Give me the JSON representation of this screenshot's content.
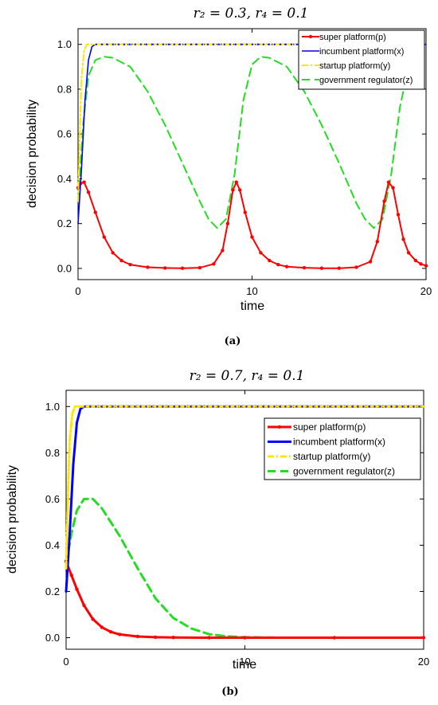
{
  "chart_data": [
    {
      "type": "line",
      "title": "r₂ = 0.3, r₄ = 0.1",
      "xlabel": "time",
      "ylabel": "decision probability",
      "xlim": [
        0,
        20
      ],
      "ylim": [
        -0.05,
        1.07
      ],
      "xticks": [
        "0",
        "10",
        "20"
      ],
      "yticks": [
        "0.0",
        "0.2",
        "0.4",
        "0.6",
        "0.8",
        "1.0"
      ],
      "caption": "(a)",
      "legend_position": "top-right",
      "series": [
        {
          "name": "super platform(p)",
          "color": "#ff0000",
          "style": "solid-dots",
          "x": [
            0,
            0.15,
            0.35,
            0.6,
            1.0,
            1.5,
            2.0,
            2.5,
            3.0,
            4.0,
            5.0,
            6.0,
            7.0,
            7.8,
            8.3,
            8.6,
            8.9,
            9.1,
            9.3,
            9.6,
            10.0,
            10.5,
            11.0,
            11.5,
            12.0,
            13.0,
            14.0,
            15.0,
            16.0,
            16.8,
            17.2,
            17.6,
            17.85,
            18.1,
            18.4,
            18.7,
            19.0,
            19.4,
            19.7,
            20.0
          ],
          "y": [
            0.36,
            0.38,
            0.385,
            0.34,
            0.25,
            0.14,
            0.07,
            0.035,
            0.017,
            0.005,
            0.002,
            0.001,
            0.003,
            0.02,
            0.08,
            0.2,
            0.35,
            0.385,
            0.35,
            0.25,
            0.14,
            0.07,
            0.035,
            0.017,
            0.008,
            0.003,
            0.001,
            0.001,
            0.005,
            0.03,
            0.12,
            0.3,
            0.385,
            0.36,
            0.24,
            0.13,
            0.07,
            0.035,
            0.02,
            0.012
          ]
        },
        {
          "name": "incumbent platform(x)",
          "color": "#0000ff",
          "style": "solid",
          "x": [
            0,
            0.2,
            0.4,
            0.6,
            0.8,
            1.0,
            20
          ],
          "y": [
            0.2,
            0.45,
            0.75,
            0.93,
            0.99,
            1.0,
            1.0
          ]
        },
        {
          "name": "startup platform(y)",
          "color": "#ffe600",
          "style": "dash-dot",
          "x": [
            0,
            0.1,
            0.2,
            0.35,
            0.5,
            20
          ],
          "y": [
            0.3,
            0.6,
            0.85,
            0.97,
            1.0,
            1.0
          ]
        },
        {
          "name": "government regulator(z)",
          "color": "#22dd22",
          "style": "dashed",
          "x": [
            0,
            0.3,
            0.6,
            1.0,
            1.5,
            2.0,
            3.0,
            4.0,
            5.0,
            6.0,
            7.0,
            7.5,
            8.0,
            8.5,
            9.0,
            9.5,
            10.0,
            10.5,
            11.0,
            12.0,
            13.0,
            14.0,
            15.0,
            16.0,
            16.5,
            17.0,
            17.5,
            18.0,
            18.5,
            19.0,
            19.5
          ],
          "y": [
            0.3,
            0.65,
            0.86,
            0.93,
            0.945,
            0.94,
            0.9,
            0.79,
            0.64,
            0.47,
            0.3,
            0.22,
            0.18,
            0.22,
            0.42,
            0.75,
            0.91,
            0.945,
            0.94,
            0.9,
            0.79,
            0.64,
            0.47,
            0.29,
            0.22,
            0.18,
            0.22,
            0.42,
            0.72,
            0.9,
            0.93
          ]
        }
      ]
    },
    {
      "type": "line",
      "title": "r₂ = 0.7, r₄ = 0.1",
      "xlabel": "time",
      "ylabel": "decision probability",
      "xlim": [
        0,
        20
      ],
      "ylim": [
        -0.05,
        1.07
      ],
      "xticks": [
        "0",
        "10",
        "20"
      ],
      "yticks": [
        "0.0",
        "0.2",
        "0.4",
        "0.6",
        "0.8",
        "1.0"
      ],
      "caption": "(b)",
      "legend_position": "center-right",
      "series": [
        {
          "name": "super platform(p)",
          "color": "#ff0000",
          "style": "solid-dots",
          "x": [
            0,
            0.3,
            0.6,
            1.0,
            1.5,
            2.0,
            2.5,
            3.0,
            4.0,
            5.0,
            6.0,
            8.0,
            10.0,
            15.0,
            20.0
          ],
          "y": [
            0.33,
            0.27,
            0.21,
            0.14,
            0.08,
            0.045,
            0.025,
            0.014,
            0.005,
            0.002,
            0.001,
            0.0,
            0.0,
            0.0,
            0.0
          ]
        },
        {
          "name": "incumbent platform(x)",
          "color": "#0000ff",
          "style": "solid",
          "x": [
            0,
            0.2,
            0.4,
            0.6,
            0.8,
            1.0,
            20
          ],
          "y": [
            0.2,
            0.45,
            0.75,
            0.93,
            0.99,
            1.0,
            1.0
          ]
        },
        {
          "name": "startup platform(y)",
          "color": "#ffe600",
          "style": "dash-dot",
          "x": [
            0,
            0.1,
            0.2,
            0.35,
            0.5,
            20
          ],
          "y": [
            0.3,
            0.6,
            0.85,
            0.97,
            1.0,
            1.0
          ]
        },
        {
          "name": "government regulator(z)",
          "color": "#22dd22",
          "style": "dashed",
          "x": [
            0,
            0.3,
            0.6,
            1.0,
            1.5,
            2.0,
            3.0,
            4.0,
            5.0,
            6.0,
            7.0,
            8.0,
            9.0,
            10.0,
            12.0,
            15.0,
            20.0
          ],
          "y": [
            0.32,
            0.45,
            0.55,
            0.6,
            0.6,
            0.56,
            0.44,
            0.3,
            0.17,
            0.085,
            0.04,
            0.015,
            0.006,
            0.002,
            0.0,
            0.0,
            0.0
          ]
        }
      ]
    }
  ]
}
